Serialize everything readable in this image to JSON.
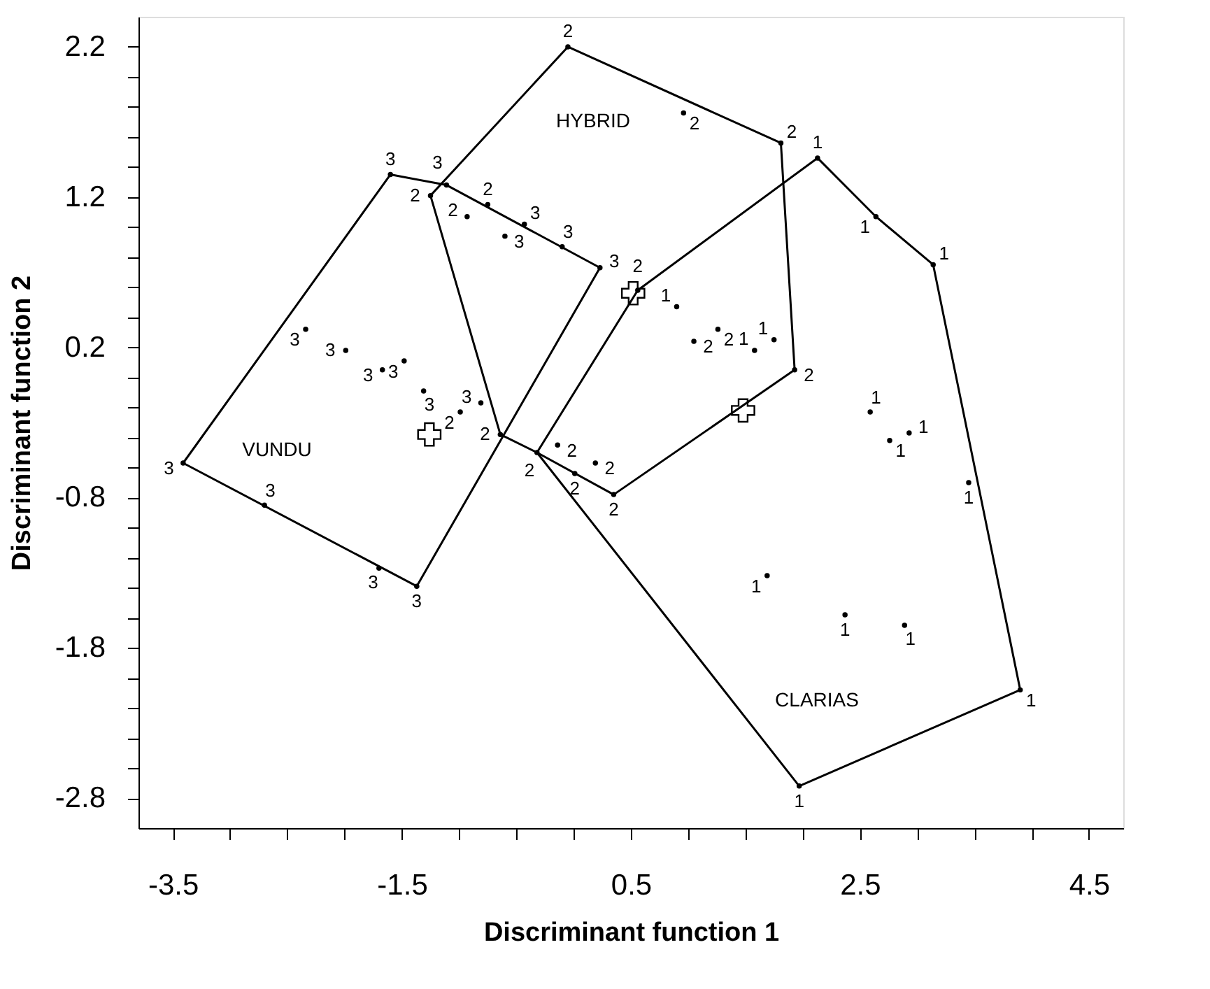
{
  "chart_data": {
    "type": "scatter",
    "xlabel": "Discriminant function 1",
    "ylabel": "Discriminant function 2",
    "xlim": [
      -3.8,
      4.8
    ],
    "ylim": [
      -3.0,
      2.4
    ],
    "xticks": [
      -3.5,
      {
        "value": -3.0,
        "label": null
      },
      {
        "value": -2.5,
        "label": null
      },
      {
        "value": -2.0,
        "label": null
      },
      -1.5,
      {
        "value": -1.0,
        "label": null
      },
      {
        "value": -0.5,
        "label": null
      },
      {
        "value": 0.0,
        "label": null
      },
      0.5,
      {
        "value": 1.0,
        "label": null
      },
      {
        "value": 1.5,
        "label": null
      },
      {
        "value": 2.0,
        "label": null
      },
      2.5,
      {
        "value": 3.0,
        "label": null
      },
      {
        "value": 3.5,
        "label": null
      },
      {
        "value": 4.0,
        "label": null
      },
      4.5
    ],
    "yticks": [
      -2.8,
      {
        "value": -2.6,
        "label": null
      },
      {
        "value": -2.4,
        "label": null
      },
      {
        "value": -2.2,
        "label": null
      },
      {
        "value": -2.0,
        "label": null
      },
      -1.8,
      {
        "value": -1.6,
        "label": null
      },
      {
        "value": -1.4,
        "label": null
      },
      {
        "value": -1.2,
        "label": null
      },
      {
        "value": -1.0,
        "label": null
      },
      -0.8,
      {
        "value": -0.6,
        "label": null
      },
      {
        "value": -0.4,
        "label": null
      },
      {
        "value": -0.2,
        "label": null
      },
      {
        "value": 0.0,
        "label": null
      },
      0.2,
      {
        "value": 0.4,
        "label": null
      },
      {
        "value": 0.6,
        "label": null
      },
      {
        "value": 0.8,
        "label": null
      },
      {
        "value": 1.0,
        "label": null
      },
      1.2,
      {
        "value": 1.4,
        "label": null
      },
      {
        "value": 1.6,
        "label": null
      },
      {
        "value": 1.8,
        "label": null
      },
      {
        "value": 2.0,
        "label": null
      },
      2.2
    ],
    "grid": false,
    "series": [
      {
        "type": "line",
        "color": "#000000",
        "x": [
          -3.41,
          -1.6,
          -1.11,
          0.23
        ],
        "values": [
          -0.57,
          1.35,
          1.28,
          0.73
        ]
      },
      {
        "type": "line",
        "color": "#000000",
        "x": [
          -3.41,
          -1.37,
          0.23
        ],
        "values": [
          -0.57,
          -1.39,
          0.73
        ]
      },
      {
        "type": "line",
        "color": "#000000",
        "x": [
          -1.25,
          -0.05,
          1.81,
          1.93
        ],
        "values": [
          1.21,
          2.2,
          1.56,
          0.05
        ]
      },
      {
        "type": "line",
        "color": "#000000",
        "x": [
          -1.25,
          -0.64,
          -0.32,
          0.35,
          1.93
        ],
        "values": [
          1.21,
          -0.38,
          -0.5,
          -0.78,
          0.05
        ]
      },
      {
        "type": "line",
        "color": "#000000",
        "x": [
          -0.32,
          0.56,
          2.13,
          2.64,
          3.14,
          3.9
        ],
        "values": [
          -0.5,
          0.58,
          1.46,
          1.07,
          0.75,
          -2.08
        ]
      },
      {
        "type": "line",
        "color": "#000000",
        "x": [
          -0.32,
          1.97,
          3.9
        ],
        "values": [
          -0.5,
          -2.72,
          -2.08
        ]
      },
      {
        "marker": "cross",
        "color": "#000000",
        "x": [
          -1.26,
          0.52,
          1.48
        ],
        "values": [
          -0.38,
          0.56,
          -0.22
        ]
      },
      {
        "name": "1",
        "marker": "circle",
        "color": "#000000",
        "x": [
          2.13,
          2.64,
          3.14,
          0.9,
          1.58,
          1.75,
          2.59,
          2.76,
          2.93,
          3.45,
          1.69,
          2.37,
          2.89,
          3.9,
          1.97
        ],
        "values": [
          1.46,
          1.07,
          0.75,
          0.47,
          0.18,
          0.25,
          -0.23,
          -0.42,
          -0.37,
          -0.7,
          -1.32,
          -1.58,
          -1.65,
          -2.08,
          -2.72
        ]
      },
      {
        "name": "2",
        "marker": "circle",
        "color": "#000000",
        "x": [
          -0.05,
          0.96,
          1.81,
          -1.25,
          -0.93,
          -0.75,
          -0.99,
          -0.64,
          -0.32,
          -0.14,
          0.01,
          0.19,
          0.35,
          0.56,
          1.05,
          1.26,
          1.93
        ],
        "values": [
          2.2,
          1.76,
          1.56,
          1.21,
          1.07,
          1.15,
          -0.23,
          -0.38,
          -0.5,
          -0.45,
          -0.64,
          -0.57,
          -0.78,
          0.58,
          0.24,
          0.32,
          0.05
        ]
      },
      {
        "name": "3",
        "marker": "circle",
        "color": "#000000",
        "x": [
          -1.6,
          -1.11,
          -0.6,
          -0.43,
          -0.1,
          0.23,
          -2.34,
          -1.99,
          -1.67,
          -1.48,
          -1.31,
          -0.81,
          -3.41,
          -2.7,
          -1.7,
          -1.37
        ],
        "values": [
          1.35,
          1.28,
          0.94,
          1.02,
          0.87,
          0.73,
          0.32,
          0.18,
          0.05,
          0.11,
          -0.09,
          -0.17,
          -0.57,
          -0.85,
          -1.27,
          -1.39
        ]
      }
    ],
    "annotations": [
      "HYBRID",
      "VUNDU",
      "CLARIAS"
    ]
  }
}
